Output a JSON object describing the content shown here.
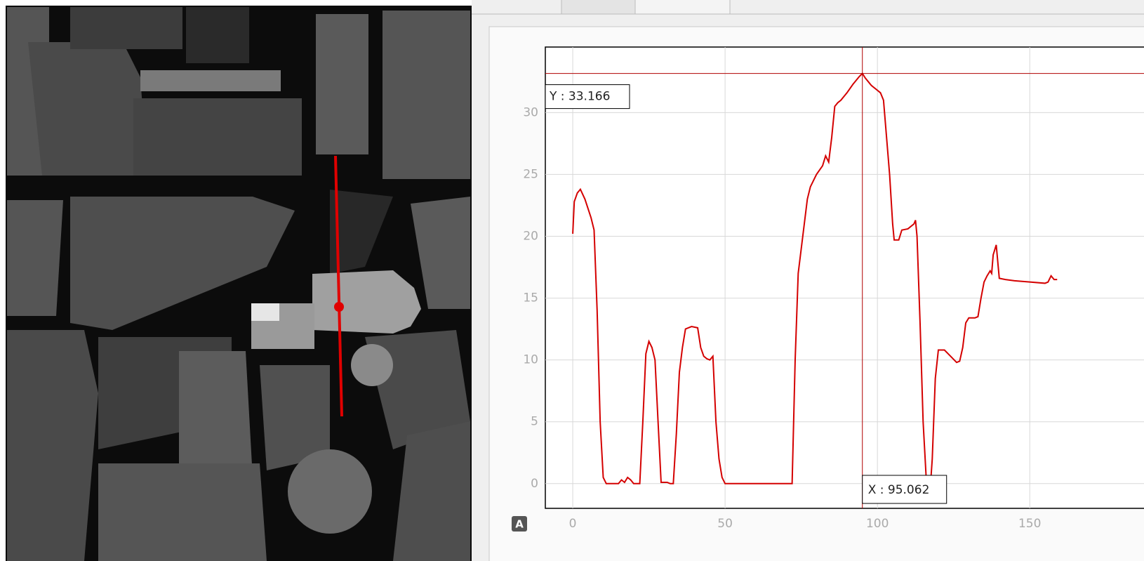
{
  "ui": {
    "icon_label": "A"
  },
  "chart_data": {
    "type": "line",
    "x": [
      0,
      0.5,
      1.5,
      2.5,
      4,
      6,
      7,
      8,
      9,
      10,
      11,
      13,
      15,
      16,
      17,
      18,
      19,
      20,
      22,
      23,
      24,
      25,
      26,
      27,
      28,
      29,
      31,
      32,
      33,
      34,
      35,
      36,
      37,
      39,
      41,
      42,
      43,
      44,
      45,
      46,
      47,
      48,
      49,
      50,
      60,
      72,
      73,
      74,
      75,
      76,
      77,
      78,
      80,
      82,
      83,
      84,
      85,
      86,
      87,
      88,
      90,
      92,
      94,
      95.062,
      96,
      98,
      100,
      101,
      102,
      103,
      104,
      105,
      105.5,
      107,
      108,
      110,
      112,
      112.5,
      113,
      114,
      115,
      116,
      116.5,
      117.5,
      118,
      119,
      120,
      122,
      124,
      126,
      127,
      128,
      129,
      130,
      132,
      133,
      134,
      135,
      136,
      137,
      137.5,
      138,
      139,
      140,
      142,
      145,
      150,
      155,
      156,
      157,
      158,
      159
    ],
    "values": [
      20.2,
      22.8,
      23.5,
      23.8,
      23,
      21.5,
      20.5,
      14,
      5,
      0.5,
      0,
      0,
      0,
      0.3,
      0.1,
      0.5,
      0.3,
      0,
      0,
      5,
      10.5,
      11.5,
      11,
      10,
      5,
      0.1,
      0.1,
      0,
      0,
      4,
      9,
      11,
      12.5,
      12.7,
      12.6,
      11,
      10.3,
      10.1,
      10,
      10.3,
      5,
      2,
      0.5,
      0,
      0,
      0,
      10,
      17,
      19,
      21,
      23,
      24,
      25,
      25.7,
      26.5,
      26,
      28,
      30.5,
      30.8,
      31,
      31.6,
      32.3,
      32.9,
      33.166,
      32.8,
      32.2,
      31.8,
      31.6,
      31,
      28,
      25,
      21,
      19.7,
      19.7,
      20.5,
      20.6,
      21,
      21.3,
      20,
      13,
      5,
      0.5,
      0,
      0.2,
      2,
      8.5,
      10.8,
      10.8,
      10.3,
      9.8,
      9.9,
      11,
      13,
      13.4,
      13.4,
      13.5,
      15,
      16.3,
      16.8,
      17.2,
      17,
      18.5,
      19.3,
      16.6,
      16.5,
      16.4,
      16.3,
      16.2,
      16.3,
      16.8,
      16.5,
      16.5
    ],
    "color": "#d40000",
    "xlim": [
      -9,
      187.5
    ],
    "ylim": [
      -2,
      35.3
    ],
    "xticks": [
      0,
      50,
      100,
      150
    ],
    "yticks": [
      0,
      5,
      10,
      15,
      20,
      25,
      30
    ],
    "grid": true,
    "crosshair": {
      "x": 95.062,
      "y": 33.166,
      "x_label": "X : 95.062",
      "y_label": "Y : 33.166"
    }
  }
}
